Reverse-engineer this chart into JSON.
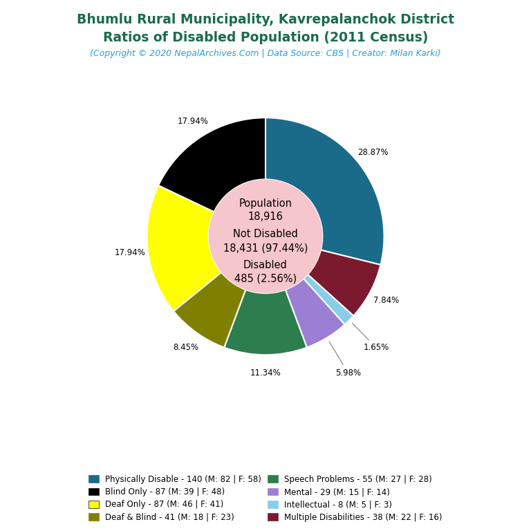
{
  "title_line1": "Bhumlu Rural Municipality, Kavrepalanchok District",
  "title_line2": "Ratios of Disabled Population (2011 Census)",
  "subtitle": "(Copyright © 2020 NepalArchives.Com | Data Source: CBS | Creator: Milan Karki)",
  "title_color": "#1a6b4a",
  "subtitle_color": "#2a9fd6",
  "center_bg": "#f5c6cb",
  "slices": [
    {
      "label": "Physically Disable - 140 (M: 82 | F: 58)",
      "value": 140,
      "pct": 28.87,
      "color": "#1a6b8a"
    },
    {
      "label": "Multiple Disabilities - 38 (M: 22 | F: 16)",
      "value": 38,
      "pct": 7.84,
      "color": "#7b1a2e"
    },
    {
      "label": "Intellectual - 8 (M: 5 | F: 3)",
      "value": 8,
      "pct": 1.65,
      "color": "#87ceeb"
    },
    {
      "label": "Mental - 29 (M: 15 | F: 14)",
      "value": 29,
      "pct": 5.98,
      "color": "#9b7fd4"
    },
    {
      "label": "Speech Problems - 55 (M: 27 | F: 28)",
      "value": 55,
      "pct": 11.34,
      "color": "#2e7d4f"
    },
    {
      "label": "Deaf & Blind - 41 (M: 18 | F: 23)",
      "value": 41,
      "pct": 8.45,
      "color": "#808000"
    },
    {
      "label": "Deaf Only - 87 (M: 46 | F: 41)",
      "value": 87,
      "pct": 17.94,
      "color": "#ffff00"
    },
    {
      "label": "Blind Only - 87 (M: 39 | F: 48)",
      "value": 87,
      "pct": 17.94,
      "color": "#000000"
    }
  ],
  "legend_items_left": [
    {
      "label": "Physically Disable - 140 (M: 82 | F: 58)",
      "color": "#1a6b8a"
    },
    {
      "label": "Deaf Only - 87 (M: 46 | F: 41)",
      "color": "#ffff00"
    },
    {
      "label": "Speech Problems - 55 (M: 27 | F: 28)",
      "color": "#2e7d4f"
    },
    {
      "label": "Intellectual - 8 (M: 5 | F: 3)",
      "color": "#87ceeb"
    }
  ],
  "legend_items_right": [
    {
      "label": "Blind Only - 87 (M: 39 | F: 48)",
      "color": "#000000"
    },
    {
      "label": "Deaf & Blind - 41 (M: 18 | F: 23)",
      "color": "#808000"
    },
    {
      "label": "Mental - 29 (M: 15 | F: 14)",
      "color": "#9b7fd4"
    },
    {
      "label": "Multiple Disabilities - 38 (M: 22 | F: 16)",
      "color": "#7b1a2e"
    }
  ],
  "bg_color": "#ffffff"
}
